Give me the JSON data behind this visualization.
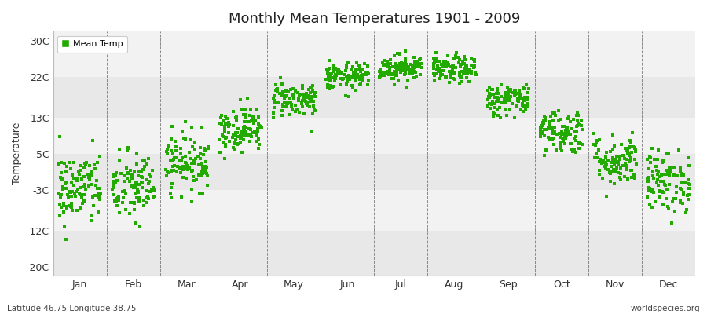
{
  "title": "Monthly Mean Temperatures 1901 - 2009",
  "ylabel": "Temperature",
  "subtitle_left": "Latitude 46.75 Longitude 38.75",
  "subtitle_right": "worldspecies.org",
  "legend_label": "Mean Temp",
  "dot_color": "#22aa00",
  "bg_color": "#ffffff",
  "plot_bg_color": "#ececec",
  "band_color": "#e0e0e0",
  "yticks": [
    -20,
    -12,
    -3,
    5,
    13,
    22,
    30
  ],
  "ytick_labels": [
    "-20C",
    "-12C",
    "-3C",
    "5C",
    "13C",
    "22C",
    "30C"
  ],
  "ylim": [
    -22,
    32
  ],
  "months": [
    "Jan",
    "Feb",
    "Mar",
    "Apr",
    "May",
    "Jun",
    "Jul",
    "Aug",
    "Sep",
    "Oct",
    "Nov",
    "Dec"
  ],
  "monthly_means": [
    -2.8,
    -2.5,
    3.2,
    10.5,
    17.0,
    22.0,
    24.0,
    23.5,
    17.0,
    10.0,
    3.5,
    -1.2
  ],
  "monthly_stds": [
    4.2,
    4.0,
    3.2,
    2.5,
    2.0,
    1.5,
    1.5,
    1.5,
    1.8,
    2.5,
    2.8,
    3.5
  ],
  "n_years": 109,
  "random_seed": 42,
  "dot_size": 7
}
